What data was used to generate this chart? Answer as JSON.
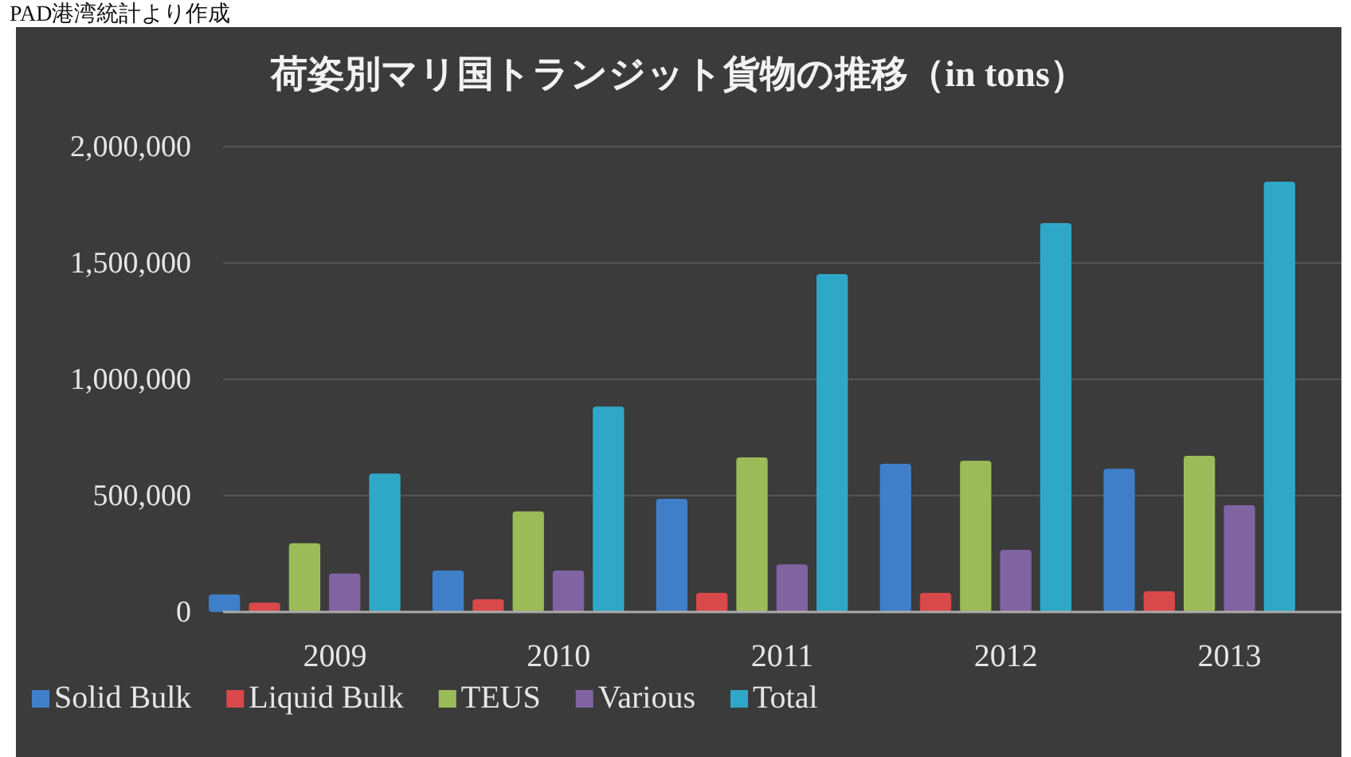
{
  "chart_data": {
    "type": "bar",
    "title": "荷姿別マリ国トランジット貨物の推移（in tons）",
    "annotations": [
      "PAD港湾統計より作成"
    ],
    "categories": [
      "2009",
      "2010",
      "2011",
      "2012",
      "2013"
    ],
    "series": [
      {
        "name": "Solid Bulk",
        "color": "#3f7fc9",
        "values": [
          75000,
          178000,
          486000,
          637000,
          616000
        ]
      },
      {
        "name": "Liquid Bulk",
        "color": "#d9484a",
        "values": [
          40000,
          55000,
          82000,
          82000,
          89000
        ]
      },
      {
        "name": "TEUS",
        "color": "#9bbb59",
        "values": [
          295000,
          432000,
          664000,
          650000,
          671000
        ]
      },
      {
        "name": "Various",
        "color": "#8064a2",
        "values": [
          165000,
          178000,
          205000,
          267000,
          459000
        ]
      },
      {
        "name": "Total",
        "color": "#2fa8c8",
        "values": [
          595000,
          883000,
          1452000,
          1671000,
          1849000
        ]
      }
    ],
    "ylim": [
      0,
      2000000
    ],
    "yticks": [
      0,
      {
        "value": 500000,
        "label": "500,000"
      },
      {
        "value": 1000000,
        "label": "1,000,000"
      },
      {
        "value": 1500000,
        "label": "1,500,000"
      },
      {
        "value": 2000000,
        "label": "2,000,000"
      }
    ],
    "grid": "y",
    "legend": "bottom"
  }
}
